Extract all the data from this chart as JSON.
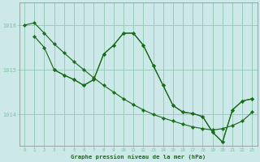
{
  "title": "Graphe pression niveau de la mer (hPa)",
  "bg_color": "#cce8e8",
  "grid_color": "#99ccbb",
  "line_color": "#1a6e1a",
  "xlim": [
    -0.5,
    23.5
  ],
  "ylim": [
    1013.3,
    1016.5
  ],
  "yticks": [
    1014,
    1015,
    1016
  ],
  "xticks": [
    0,
    1,
    2,
    3,
    4,
    5,
    6,
    7,
    8,
    9,
    10,
    11,
    12,
    13,
    14,
    15,
    16,
    17,
    18,
    19,
    20,
    21,
    22,
    23
  ],
  "s1_x": [
    0,
    1,
    2,
    3,
    4,
    5,
    6,
    7,
    8,
    9,
    10,
    11,
    12,
    13,
    14,
    15,
    16,
    17,
    18,
    19,
    20,
    21,
    22,
    23
  ],
  "s1_y": [
    1016.0,
    1016.05,
    1015.82,
    1015.58,
    1015.38,
    1015.18,
    1015.0,
    1014.82,
    1014.65,
    1014.5,
    1014.35,
    1014.22,
    1014.1,
    1014.0,
    1013.92,
    1013.85,
    1013.78,
    1013.72,
    1013.68,
    1013.65,
    1013.68,
    1013.75,
    1013.85,
    1014.05
  ],
  "s2_x": [
    1,
    2,
    3,
    4,
    5,
    6,
    7,
    8,
    9,
    10,
    11,
    12,
    13,
    14,
    15,
    16,
    17,
    18,
    19,
    20,
    21,
    22,
    23
  ],
  "s2_y": [
    1015.75,
    1015.5,
    1015.0,
    1014.88,
    1014.78,
    1014.65,
    1014.78,
    1015.35,
    1015.55,
    1015.82,
    1015.82,
    1015.55,
    1015.1,
    1014.65,
    1014.2,
    1014.05,
    1014.02,
    1013.95,
    1013.6,
    1013.38,
    1014.1,
    1014.3,
    1014.35
  ],
  "s3_x": [
    3,
    4,
    5,
    6,
    7,
    8,
    9,
    10,
    11,
    12,
    13,
    14,
    15,
    16,
    17,
    18,
    19,
    20,
    21,
    22,
    23
  ],
  "s3_y": [
    1015.0,
    1014.88,
    1014.78,
    1014.65,
    1014.78,
    1015.35,
    1015.55,
    1015.82,
    1015.82,
    1015.55,
    1015.1,
    1014.65,
    1014.2,
    1014.05,
    1014.02,
    1013.95,
    1013.6,
    1013.38,
    1014.1,
    1014.3,
    1014.35
  ]
}
